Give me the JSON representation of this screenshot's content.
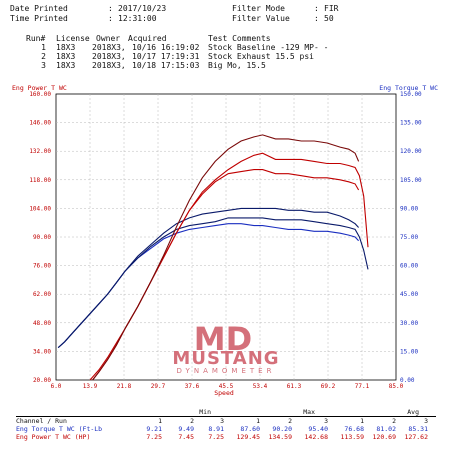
{
  "header": {
    "date_printed_label": "Date Printed",
    "date_printed_value": "2017/10/23",
    "time_printed_label": "Time Printed",
    "time_printed_value": "12:31:00",
    "filter_mode_label": "Filter Mode",
    "filter_mode_value": "FIR",
    "filter_value_label": "Filter Value",
    "filter_value_value": "50",
    "colon": ":"
  },
  "runs": {
    "columns": [
      "Run#",
      "License",
      "Owner",
      "Acquired",
      "Test Comments"
    ],
    "rows": [
      {
        "run": "1",
        "license": "18X3",
        "owner": "2018X3,",
        "acquired": "10/16 16:19:02",
        "comment": "Stock Baseline -129 MP- -"
      },
      {
        "run": "2",
        "license": "18X3",
        "owner": "2018X3,",
        "acquired": "10/17 17:19:31",
        "comment": "Stock Exhaust 15.5 psi"
      },
      {
        "run": "3",
        "license": "18X3",
        "owner": "2018X3,",
        "acquired": "10/18 17:15:03",
        "comment": "Big Mo, 15.5"
      }
    ]
  },
  "logo": {
    "letters": "MD",
    "name": "MUSTANG",
    "sub": "DYNAMOMETER"
  },
  "colors": {
    "power": "#c00000",
    "torque": "#1a2ec0",
    "power_dark": "#7a0a0a",
    "torque_dark": "#0a1a6a",
    "logo": "#d4707a"
  },
  "chart_data": {
    "type": "line",
    "xlabel": "Speed",
    "y_left_label": "Eng Power T WC",
    "y_right_label": "Eng Torque T WC",
    "x_ticks": [
      "6.0",
      "13.9",
      "21.8",
      "29.7",
      "37.6",
      "45.5",
      "53.4",
      "61.3",
      "69.2",
      "77.1",
      "85.0"
    ],
    "y_left_ticks": [
      "20.00",
      "34.00",
      "48.00",
      "62.00",
      "76.00",
      "90.00",
      "104.00",
      "118.00",
      "132.00",
      "146.00",
      "160.00"
    ],
    "y_right_ticks": [
      "0.00",
      "15.00",
      "30.00",
      "45.00",
      "60.00",
      "75.00",
      "90.00",
      "105.00",
      "120.00",
      "135.00",
      "150.00"
    ],
    "xlim": [
      6.0,
      85.0
    ],
    "y_left_lim": [
      20,
      160
    ],
    "y_right_lim": [
      0,
      150
    ],
    "grid": true,
    "power_series": [
      {
        "name": "1",
        "x": [
          13.9,
          16,
          18,
          20,
          22,
          25,
          28,
          31,
          34,
          37,
          40,
          43,
          46,
          49,
          52,
          54,
          57,
          60,
          63,
          66,
          69,
          72,
          74,
          75.5,
          76.3
        ],
        "y": [
          20,
          25,
          31,
          38,
          45,
          56,
          68,
          80,
          92,
          103,
          111,
          117,
          121,
          122,
          123,
          123,
          121,
          121,
          120,
          119,
          119,
          118,
          117,
          116,
          113
        ]
      },
      {
        "name": "2",
        "x": [
          14.5,
          16,
          18,
          20,
          22,
          25,
          28,
          31,
          34,
          37,
          40,
          43,
          46,
          49,
          52,
          54,
          57,
          60,
          63,
          66,
          69,
          72,
          74,
          75.5,
          76.5,
          77.5,
          78.5
        ],
        "y": [
          20,
          24,
          30,
          37,
          45,
          56,
          68,
          80,
          92,
          103,
          112,
          118,
          123,
          127,
          130,
          131,
          128,
          128,
          128,
          127,
          126,
          126,
          125,
          124,
          120,
          110,
          85
        ]
      },
      {
        "name": "3",
        "x": [
          14.5,
          16,
          18,
          20,
          22,
          25,
          28,
          31,
          34,
          37,
          40,
          43,
          46,
          49,
          52,
          54,
          57,
          60,
          63,
          66,
          69,
          72,
          74,
          75.5,
          76.3
        ],
        "y": [
          20,
          24,
          30,
          37,
          45,
          56,
          68,
          81,
          95,
          108,
          119,
          127,
          133,
          137,
          139,
          140,
          138,
          138,
          137,
          137,
          136,
          134,
          133,
          131,
          127
        ]
      }
    ],
    "torque_series": [
      {
        "name": "1",
        "x": [
          6.5,
          8,
          10,
          12,
          14,
          16,
          18,
          20,
          22,
          25,
          28,
          31,
          34,
          37,
          40,
          43,
          46,
          49,
          52,
          54,
          57,
          60,
          63,
          66,
          69,
          72,
          74,
          75.5,
          76.3
        ],
        "y": [
          17,
          20,
          25,
          30,
          35,
          40,
          45,
          51,
          57,
          64,
          69,
          74,
          77,
          79,
          80,
          81,
          82,
          82,
          81,
          81,
          80,
          79,
          79,
          78,
          78,
          77,
          76,
          75,
          73
        ]
      },
      {
        "name": "2",
        "x": [
          6.5,
          8,
          10,
          12,
          14,
          16,
          18,
          20,
          22,
          25,
          28,
          31,
          34,
          37,
          40,
          43,
          46,
          49,
          52,
          54,
          57,
          60,
          63,
          66,
          69,
          72,
          74,
          75.5,
          76.5,
          77.5,
          78.5
        ],
        "y": [
          17,
          20,
          25,
          30,
          35,
          40,
          45,
          51,
          57,
          64,
          70,
          75,
          79,
          81,
          82,
          83,
          85,
          85,
          85,
          85,
          84,
          84,
          84,
          83,
          82,
          81,
          80,
          79,
          75,
          68,
          58
        ]
      },
      {
        "name": "3",
        "x": [
          6.5,
          8,
          10,
          12,
          14,
          16,
          18,
          20,
          22,
          25,
          28,
          31,
          34,
          37,
          40,
          43,
          46,
          49,
          52,
          54,
          57,
          60,
          63,
          66,
          69,
          72,
          74,
          75.5,
          76.3
        ],
        "y": [
          17,
          20,
          25,
          30,
          35,
          40,
          45,
          51,
          57,
          65,
          71,
          77,
          82,
          85,
          87,
          88,
          89,
          90,
          90,
          90,
          90,
          89,
          89,
          88,
          88,
          86,
          84,
          82,
          80
        ]
      }
    ]
  },
  "stats": {
    "channel_header": "Channel / Run",
    "group_headers": [
      "Min",
      "Max",
      "Avg"
    ],
    "run_numbers": [
      "1",
      "2",
      "3",
      "1",
      "2",
      "3",
      "1",
      "2",
      "3"
    ],
    "rows": [
      {
        "label": "Eng Torque T WC (Ft-Lb",
        "values": [
          "9.21",
          "9.49",
          "8.91",
          "87.60",
          "90.20",
          "95.40",
          "76.68",
          "81.02",
          "85.31"
        ]
      },
      {
        "label": "Eng Power T WC (HP)",
        "values": [
          "7.25",
          "7.45",
          "7.25",
          "129.45",
          "134.59",
          "142.68",
          "113.59",
          "120.69",
          "127.62"
        ]
      }
    ]
  }
}
